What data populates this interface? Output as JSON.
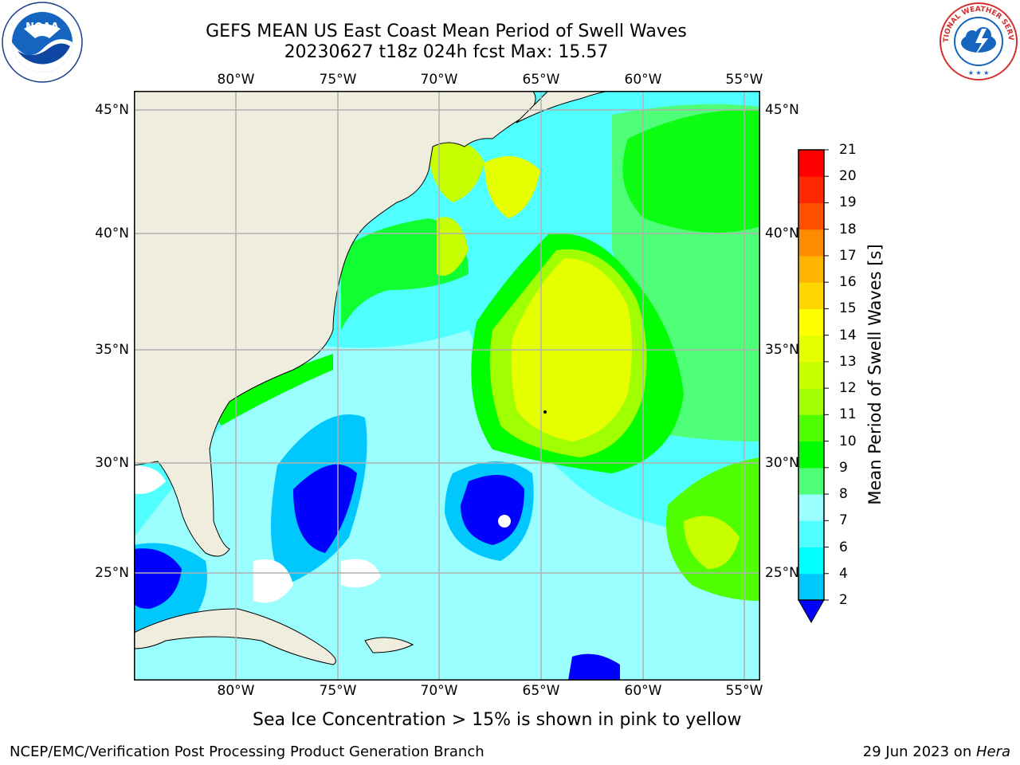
{
  "title": {
    "line1": "GEFS MEAN US East Coast Mean Period of Swell Waves",
    "line2": "20230627 t18z 024h fcst   Max: 15.57"
  },
  "logos": {
    "noaa": {
      "text": "NOAA",
      "ring_text": "NATIONAL OCEANIC AND ATMOSPHERIC ADMINISTRATION · U.S. DEPARTMENT OF COMMERCE"
    },
    "nws": {
      "ring_text": "NATIONAL WEATHER SERVICE"
    }
  },
  "map": {
    "lon_labels": [
      "80°W",
      "75°W",
      "70°W",
      "65°W",
      "60°W",
      "55°W"
    ],
    "lat_labels": [
      "45°N",
      "40°N",
      "35°N",
      "30°N",
      "25°N"
    ],
    "land_color": "#efedde",
    "grid_color": "#b0b0b0",
    "field_description_colors": {
      "low": "#0000ff",
      "mid": "#00ffff",
      "high": "#e6ff00"
    }
  },
  "colorbar": {
    "label": "Mean Period of Swell Waves [s]",
    "ticks": [
      "2",
      "4",
      "6",
      "7",
      "8",
      "9",
      "10",
      "11",
      "12",
      "13",
      "14",
      "15",
      "16",
      "17",
      "18",
      "19",
      "20",
      "21"
    ],
    "colors": [
      "#0050ff",
      "#00c8ff",
      "#00ffff",
      "#50ffff",
      "#9bffff",
      "#50ff78",
      "#00ff00",
      "#50ff00",
      "#a0ff00",
      "#c8ff00",
      "#e6ff00",
      "#ffff00",
      "#ffd700",
      "#ffb400",
      "#ff8c00",
      "#ff5000",
      "#ff2800",
      "#ff0000"
    ],
    "extend_min_color": "#0000ff"
  },
  "note": "Sea Ice Concentration > 15% is shown in pink to yellow",
  "footer": {
    "left": "NCEP/EMC/Verification Post Processing Product Generation Branch",
    "right_date": "29 Jun 2023 on ",
    "right_host": "Hera"
  }
}
